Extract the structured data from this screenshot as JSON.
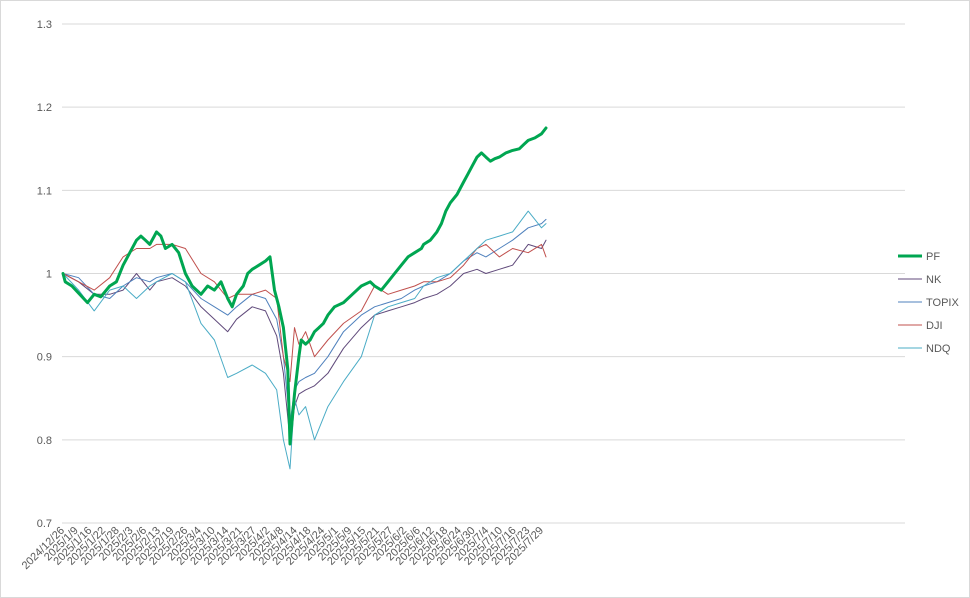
{
  "chart_data": {
    "type": "line",
    "ylim": [
      0.7,
      1.3
    ],
    "yticks": [
      0.7,
      0.8,
      0.9,
      1,
      1.1,
      1.2,
      1.3
    ],
    "ytick_labels": [
      "0.7",
      "0.8",
      "0.9",
      "1",
      "1.1",
      "1.2",
      "1.3"
    ],
    "xlim": [
      "2024-12-26",
      "2025-07-31"
    ],
    "x_tick_labels": [
      "2024/12/26",
      "2025/1/9",
      "2025/1/16",
      "2025/1/22",
      "2025/1/28",
      "2025/2/3",
      "2025/2/6",
      "2025/2/13",
      "2025/2/19",
      "2025/2/26",
      "2025/3/4",
      "2025/3/10",
      "2025/3/14",
      "2025/3/21",
      "2025/3/27",
      "2025/4/2",
      "2025/4/8",
      "2025/4/14",
      "2025/4/18",
      "2025/4/24",
      "2025/5/1",
      "2025/5/9",
      "2025/5/15",
      "2025/5/21",
      "2025/5/27",
      "2025/6/2",
      "2025/6/6",
      "2025/6/12",
      "2025/6/18",
      "2025/6/24",
      "2025/6/30",
      "2025/7/4",
      "2025/7/10",
      "2025/7/16",
      "2025/7/23",
      "2025/7/29"
    ],
    "legend": "right",
    "grid": true,
    "series": [
      {
        "name": "PF",
        "color": "#00a651",
        "width": 3,
        "points": [
          [
            "2024-12-26",
            1.0
          ],
          [
            "2024-12-27",
            0.99
          ],
          [
            "2024-12-30",
            0.985
          ],
          [
            "2025-01-06",
            0.965
          ],
          [
            "2025-01-09",
            0.975
          ],
          [
            "2025-01-12",
            0.972
          ],
          [
            "2025-01-16",
            0.985
          ],
          [
            "2025-01-19",
            0.99
          ],
          [
            "2025-01-22",
            1.01
          ],
          [
            "2025-01-25",
            1.025
          ],
          [
            "2025-01-28",
            1.04
          ],
          [
            "2025-01-30",
            1.045
          ],
          [
            "2025-02-01",
            1.04
          ],
          [
            "2025-02-03",
            1.035
          ],
          [
            "2025-02-05",
            1.045
          ],
          [
            "2025-02-06",
            1.05
          ],
          [
            "2025-02-08",
            1.045
          ],
          [
            "2025-02-10",
            1.03
          ],
          [
            "2025-02-13",
            1.035
          ],
          [
            "2025-02-16",
            1.025
          ],
          [
            "2025-02-19",
            1.0
          ],
          [
            "2025-02-22",
            0.985
          ],
          [
            "2025-02-24",
            0.98
          ],
          [
            "2025-02-26",
            0.975
          ],
          [
            "2025-03-01",
            0.985
          ],
          [
            "2025-03-04",
            0.98
          ],
          [
            "2025-03-07",
            0.99
          ],
          [
            "2025-03-10",
            0.97
          ],
          [
            "2025-03-12",
            0.96
          ],
          [
            "2025-03-14",
            0.975
          ],
          [
            "2025-03-17",
            0.985
          ],
          [
            "2025-03-19",
            1.0
          ],
          [
            "2025-03-21",
            1.005
          ],
          [
            "2025-03-24",
            1.01
          ],
          [
            "2025-03-27",
            1.015
          ],
          [
            "2025-03-29",
            1.02
          ],
          [
            "2025-03-31",
            0.98
          ],
          [
            "2025-04-02",
            0.96
          ],
          [
            "2025-04-04",
            0.935
          ],
          [
            "2025-04-06",
            0.885
          ],
          [
            "2025-04-07",
            0.795
          ],
          [
            "2025-04-09",
            0.855
          ],
          [
            "2025-04-11",
            0.9
          ],
          [
            "2025-04-12",
            0.92
          ],
          [
            "2025-04-14",
            0.915
          ],
          [
            "2025-04-16",
            0.92
          ],
          [
            "2025-04-18",
            0.93
          ],
          [
            "2025-04-20",
            0.935
          ],
          [
            "2025-04-22",
            0.94
          ],
          [
            "2025-04-24",
            0.95
          ],
          [
            "2025-04-27",
            0.96
          ],
          [
            "2025-05-01",
            0.965
          ],
          [
            "2025-05-05",
            0.975
          ],
          [
            "2025-05-09",
            0.985
          ],
          [
            "2025-05-13",
            0.99
          ],
          [
            "2025-05-15",
            0.985
          ],
          [
            "2025-05-18",
            0.98
          ],
          [
            "2025-05-21",
            0.99
          ],
          [
            "2025-05-24",
            1.0
          ],
          [
            "2025-05-27",
            1.01
          ],
          [
            "2025-05-30",
            1.02
          ],
          [
            "2025-06-02",
            1.025
          ],
          [
            "2025-06-05",
            1.03
          ],
          [
            "2025-06-06",
            1.035
          ],
          [
            "2025-06-09",
            1.04
          ],
          [
            "2025-06-12",
            1.05
          ],
          [
            "2025-06-14",
            1.06
          ],
          [
            "2025-06-16",
            1.075
          ],
          [
            "2025-06-18",
            1.085
          ],
          [
            "2025-06-21",
            1.095
          ],
          [
            "2025-06-24",
            1.11
          ],
          [
            "2025-06-26",
            1.12
          ],
          [
            "2025-06-28",
            1.13
          ],
          [
            "2025-06-30",
            1.14
          ],
          [
            "2025-07-02",
            1.145
          ],
          [
            "2025-07-04",
            1.14
          ],
          [
            "2025-07-06",
            1.135
          ],
          [
            "2025-07-08",
            1.138
          ],
          [
            "2025-07-10",
            1.14
          ],
          [
            "2025-07-13",
            1.145
          ],
          [
            "2025-07-16",
            1.148
          ],
          [
            "2025-07-19",
            1.15
          ],
          [
            "2025-07-21",
            1.155
          ],
          [
            "2025-07-23",
            1.16
          ],
          [
            "2025-07-26",
            1.163
          ],
          [
            "2025-07-29",
            1.168
          ],
          [
            "2025-07-31",
            1.175
          ]
        ]
      },
      {
        "name": "NK",
        "color": "#604a7b",
        "width": 1,
        "points": [
          [
            "2024-12-26",
            1.0
          ],
          [
            "2025-01-02",
            0.99
          ],
          [
            "2025-01-09",
            0.975
          ],
          [
            "2025-01-16",
            0.975
          ],
          [
            "2025-01-22",
            0.98
          ],
          [
            "2025-01-28",
            1.0
          ],
          [
            "2025-02-03",
            0.98
          ],
          [
            "2025-02-06",
            0.99
          ],
          [
            "2025-02-13",
            0.995
          ],
          [
            "2025-02-19",
            0.985
          ],
          [
            "2025-02-26",
            0.96
          ],
          [
            "2025-03-04",
            0.945
          ],
          [
            "2025-03-10",
            0.93
          ],
          [
            "2025-03-14",
            0.945
          ],
          [
            "2025-03-21",
            0.96
          ],
          [
            "2025-03-27",
            0.955
          ],
          [
            "2025-04-01",
            0.925
          ],
          [
            "2025-04-04",
            0.88
          ],
          [
            "2025-04-07",
            0.8
          ],
          [
            "2025-04-09",
            0.84
          ],
          [
            "2025-04-11",
            0.855
          ],
          [
            "2025-04-14",
            0.86
          ],
          [
            "2025-04-18",
            0.865
          ],
          [
            "2025-04-24",
            0.88
          ],
          [
            "2025-05-01",
            0.91
          ],
          [
            "2025-05-09",
            0.935
          ],
          [
            "2025-05-15",
            0.95
          ],
          [
            "2025-05-21",
            0.955
          ],
          [
            "2025-05-27",
            0.96
          ],
          [
            "2025-06-02",
            0.965
          ],
          [
            "2025-06-06",
            0.97
          ],
          [
            "2025-06-12",
            0.975
          ],
          [
            "2025-06-18",
            0.985
          ],
          [
            "2025-06-24",
            1.0
          ],
          [
            "2025-06-30",
            1.005
          ],
          [
            "2025-07-04",
            1.0
          ],
          [
            "2025-07-10",
            1.005
          ],
          [
            "2025-07-16",
            1.01
          ],
          [
            "2025-07-23",
            1.035
          ],
          [
            "2025-07-29",
            1.03
          ],
          [
            "2025-07-31",
            1.04
          ]
        ]
      },
      {
        "name": "TOPIX",
        "color": "#4f81bd",
        "width": 1,
        "points": [
          [
            "2024-12-26",
            1.0
          ],
          [
            "2025-01-02",
            0.995
          ],
          [
            "2025-01-09",
            0.975
          ],
          [
            "2025-01-16",
            0.97
          ],
          [
            "2025-01-22",
            0.985
          ],
          [
            "2025-01-28",
            0.995
          ],
          [
            "2025-02-03",
            0.99
          ],
          [
            "2025-02-06",
            0.995
          ],
          [
            "2025-02-13",
            1.0
          ],
          [
            "2025-02-19",
            0.99
          ],
          [
            "2025-02-26",
            0.97
          ],
          [
            "2025-03-04",
            0.96
          ],
          [
            "2025-03-10",
            0.95
          ],
          [
            "2025-03-14",
            0.96
          ],
          [
            "2025-03-21",
            0.975
          ],
          [
            "2025-03-27",
            0.97
          ],
          [
            "2025-04-01",
            0.945
          ],
          [
            "2025-04-04",
            0.9
          ],
          [
            "2025-04-07",
            0.82
          ],
          [
            "2025-04-09",
            0.86
          ],
          [
            "2025-04-11",
            0.87
          ],
          [
            "2025-04-14",
            0.875
          ],
          [
            "2025-04-18",
            0.88
          ],
          [
            "2025-04-24",
            0.9
          ],
          [
            "2025-05-01",
            0.93
          ],
          [
            "2025-05-09",
            0.95
          ],
          [
            "2025-05-15",
            0.96
          ],
          [
            "2025-05-21",
            0.965
          ],
          [
            "2025-05-27",
            0.97
          ],
          [
            "2025-06-02",
            0.98
          ],
          [
            "2025-06-06",
            0.985
          ],
          [
            "2025-06-12",
            0.99
          ],
          [
            "2025-06-18",
            1.0
          ],
          [
            "2025-06-24",
            1.015
          ],
          [
            "2025-06-30",
            1.025
          ],
          [
            "2025-07-04",
            1.02
          ],
          [
            "2025-07-10",
            1.03
          ],
          [
            "2025-07-16",
            1.04
          ],
          [
            "2025-07-23",
            1.055
          ],
          [
            "2025-07-29",
            1.06
          ],
          [
            "2025-07-31",
            1.065
          ]
        ]
      },
      {
        "name": "DJI",
        "color": "#c0504d",
        "width": 1,
        "points": [
          [
            "2024-12-26",
            1.0
          ],
          [
            "2025-01-02",
            0.99
          ],
          [
            "2025-01-09",
            0.98
          ],
          [
            "2025-01-16",
            0.995
          ],
          [
            "2025-01-22",
            1.02
          ],
          [
            "2025-01-28",
            1.03
          ],
          [
            "2025-02-03",
            1.03
          ],
          [
            "2025-02-06",
            1.035
          ],
          [
            "2025-02-13",
            1.035
          ],
          [
            "2025-02-19",
            1.03
          ],
          [
            "2025-02-26",
            1.0
          ],
          [
            "2025-03-04",
            0.99
          ],
          [
            "2025-03-10",
            0.97
          ],
          [
            "2025-03-14",
            0.975
          ],
          [
            "2025-03-21",
            0.975
          ],
          [
            "2025-03-27",
            0.98
          ],
          [
            "2025-04-01",
            0.97
          ],
          [
            "2025-04-04",
            0.9
          ],
          [
            "2025-04-07",
            0.87
          ],
          [
            "2025-04-09",
            0.935
          ],
          [
            "2025-04-11",
            0.915
          ],
          [
            "2025-04-14",
            0.93
          ],
          [
            "2025-04-18",
            0.9
          ],
          [
            "2025-04-24",
            0.92
          ],
          [
            "2025-05-01",
            0.94
          ],
          [
            "2025-05-09",
            0.955
          ],
          [
            "2025-05-15",
            0.985
          ],
          [
            "2025-05-21",
            0.975
          ],
          [
            "2025-05-27",
            0.98
          ],
          [
            "2025-06-02",
            0.985
          ],
          [
            "2025-06-06",
            0.99
          ],
          [
            "2025-06-12",
            0.99
          ],
          [
            "2025-06-18",
            0.995
          ],
          [
            "2025-06-24",
            1.01
          ],
          [
            "2025-06-30",
            1.03
          ],
          [
            "2025-07-04",
            1.035
          ],
          [
            "2025-07-10",
            1.02
          ],
          [
            "2025-07-16",
            1.03
          ],
          [
            "2025-07-23",
            1.025
          ],
          [
            "2025-07-29",
            1.035
          ],
          [
            "2025-07-31",
            1.02
          ]
        ]
      },
      {
        "name": "NDQ",
        "color": "#4bacc6",
        "width": 1,
        "points": [
          [
            "2024-12-26",
            1.0
          ],
          [
            "2025-01-02",
            0.98
          ],
          [
            "2025-01-09",
            0.955
          ],
          [
            "2025-01-16",
            0.98
          ],
          [
            "2025-01-22",
            0.985
          ],
          [
            "2025-01-28",
            0.97
          ],
          [
            "2025-02-03",
            0.985
          ],
          [
            "2025-02-06",
            0.99
          ],
          [
            "2025-02-13",
            1.0
          ],
          [
            "2025-02-19",
            0.99
          ],
          [
            "2025-02-26",
            0.94
          ],
          [
            "2025-03-04",
            0.92
          ],
          [
            "2025-03-10",
            0.875
          ],
          [
            "2025-03-14",
            0.88
          ],
          [
            "2025-03-21",
            0.89
          ],
          [
            "2025-03-27",
            0.88
          ],
          [
            "2025-04-01",
            0.86
          ],
          [
            "2025-04-04",
            0.8
          ],
          [
            "2025-04-07",
            0.765
          ],
          [
            "2025-04-09",
            0.85
          ],
          [
            "2025-04-11",
            0.83
          ],
          [
            "2025-04-14",
            0.84
          ],
          [
            "2025-04-18",
            0.8
          ],
          [
            "2025-04-24",
            0.84
          ],
          [
            "2025-05-01",
            0.87
          ],
          [
            "2025-05-09",
            0.9
          ],
          [
            "2025-05-15",
            0.95
          ],
          [
            "2025-05-21",
            0.96
          ],
          [
            "2025-05-27",
            0.965
          ],
          [
            "2025-06-02",
            0.97
          ],
          [
            "2025-06-06",
            0.985
          ],
          [
            "2025-06-12",
            0.995
          ],
          [
            "2025-06-18",
            1.0
          ],
          [
            "2025-06-24",
            1.015
          ],
          [
            "2025-06-30",
            1.03
          ],
          [
            "2025-07-04",
            1.04
          ],
          [
            "2025-07-10",
            1.045
          ],
          [
            "2025-07-16",
            1.05
          ],
          [
            "2025-07-23",
            1.075
          ],
          [
            "2025-07-29",
            1.055
          ],
          [
            "2025-07-31",
            1.06
          ]
        ]
      }
    ]
  }
}
